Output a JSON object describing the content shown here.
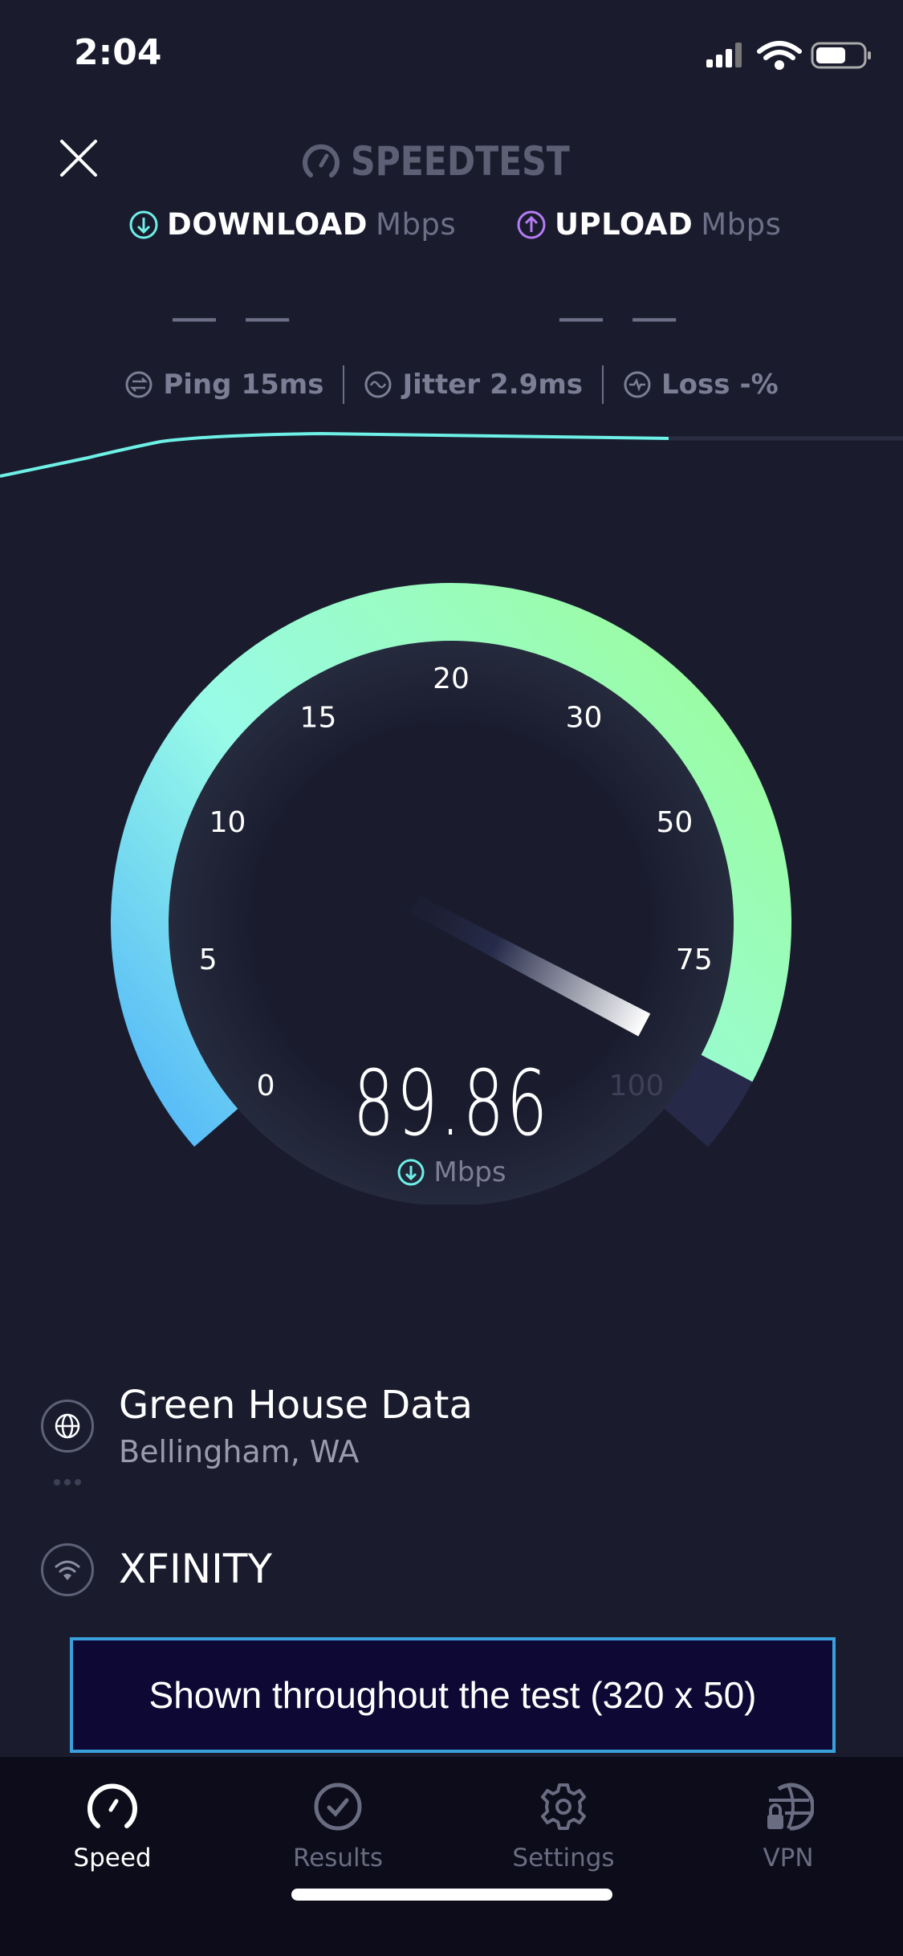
{
  "status_bar": {
    "time": "2:04"
  },
  "header": {
    "logo_text": "SPEEDTEST",
    "close_icon": "close-icon"
  },
  "download": {
    "label": "DOWNLOAD",
    "unit": "Mbps",
    "value": "— —",
    "color": "#6ef0e6"
  },
  "upload": {
    "label": "UPLOAD",
    "unit": "Mbps",
    "value": "— —",
    "color": "#b57cf5"
  },
  "metrics": {
    "ping": {
      "label": "Ping",
      "value": "15",
      "unit": "ms"
    },
    "jitter": {
      "label": "Jitter",
      "value": "2.9",
      "unit": "ms"
    },
    "loss": {
      "label": "Loss",
      "value": "-",
      "unit": "%"
    }
  },
  "gauge": {
    "ticks": [
      "0",
      "5",
      "10",
      "15",
      "20",
      "30",
      "50",
      "75",
      "100"
    ],
    "current_value": "89.86",
    "needle_value": 89.86,
    "unit": "Mbps",
    "colors": {
      "start": "#52b6f9",
      "mid": "#98fbe8",
      "end": "#9bfca5",
      "remaining": "#262a48"
    }
  },
  "server": {
    "name": "Green House Data",
    "location": "Bellingham, WA"
  },
  "isp": {
    "name": "XFINITY"
  },
  "ad": {
    "text": "Shown throughout the test (320 x 50)"
  },
  "tabs": [
    {
      "label": "Speed",
      "icon": "speedometer-icon",
      "active": true
    },
    {
      "label": "Results",
      "icon": "check-circle-icon",
      "active": false
    },
    {
      "label": "Settings",
      "icon": "gear-icon",
      "active": false
    },
    {
      "label": "VPN",
      "icon": "globe-lock-icon",
      "active": false
    }
  ]
}
